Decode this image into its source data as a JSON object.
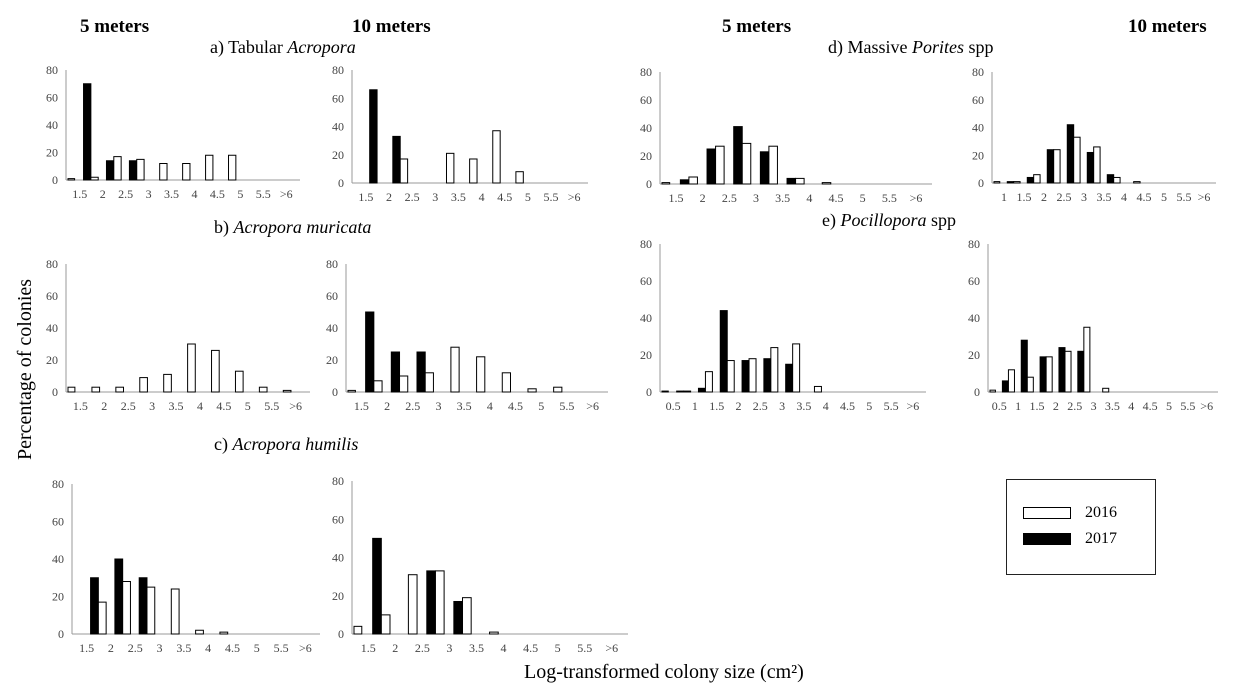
{
  "column_headers": [
    "5 meters",
    "10 meters",
    "5 meters",
    "10 meters"
  ],
  "panel_titles": {
    "a": {
      "prefix": "a) Tabular ",
      "italic": "Acropora",
      "suffix": ""
    },
    "b": {
      "prefix": "b) ",
      "italic": "Acropora muricata",
      "suffix": ""
    },
    "c": {
      "prefix": "c) ",
      "italic": "Acropora humilis",
      "suffix": ""
    },
    "d": {
      "prefix": "d) Massive ",
      "italic": "Porites",
      "suffix": " spp"
    },
    "e": {
      "prefix": "e) ",
      "italic": "Pocillopora",
      "suffix": " spp"
    }
  },
  "y_axis_label": "Percentage of colonies",
  "x_axis_label": "Log-transformed colony size (cm²)",
  "legend": [
    {
      "label": "2016",
      "color": "#ffffff"
    },
    {
      "label": "2017",
      "color": "#000000"
    }
  ],
  "chart_data": [
    {
      "id": "a-5m",
      "type": "bar",
      "panel": "a",
      "depth": "5 meters",
      "ylim": [
        0,
        80
      ],
      "yticks": [
        0,
        20,
        40,
        60,
        80
      ],
      "categories": [
        "1.5",
        "2",
        "2.5",
        "3",
        "3.5",
        "4",
        "4.5",
        "5",
        "5.5",
        ">6"
      ],
      "series": [
        {
          "name": "2016",
          "values": [
            2,
            17,
            15,
            12,
            12,
            18,
            18,
            0,
            0,
            0
          ]
        },
        {
          "name": "2017",
          "values": [
            70,
            14,
            14,
            0,
            0,
            0,
            0,
            0,
            0,
            0
          ]
        }
      ],
      "first_2016": 1
    },
    {
      "id": "a-10m",
      "type": "bar",
      "panel": "a",
      "depth": "10 meters",
      "ylim": [
        0,
        80
      ],
      "yticks": [
        0,
        20,
        40,
        60,
        80
      ],
      "categories": [
        "1.5",
        "2",
        "2.5",
        "3",
        "3.5",
        "4",
        "4.5",
        "5",
        "5.5",
        ">6"
      ],
      "series": [
        {
          "name": "2016",
          "values": [
            0,
            17,
            0,
            21,
            17,
            37,
            8,
            0,
            0,
            0
          ]
        },
        {
          "name": "2017",
          "values": [
            66,
            33,
            0,
            0,
            0,
            0,
            0,
            0,
            0,
            0
          ]
        }
      ],
      "first_2016": 0
    },
    {
      "id": "b-5m",
      "type": "bar",
      "panel": "b",
      "depth": "5 meters",
      "ylim": [
        0,
        80
      ],
      "yticks": [
        0,
        20,
        40,
        60,
        80
      ],
      "categories": [
        "1.5",
        "2",
        "2.5",
        "3",
        "3.5",
        "4",
        "4.5",
        "5",
        "5.5",
        ">6"
      ],
      "series": [
        {
          "name": "2016",
          "values": [
            3,
            3,
            9,
            11,
            30,
            26,
            13,
            3,
            1,
            0
          ]
        },
        {
          "name": "2017",
          "values": [
            0,
            0,
            0,
            0,
            0,
            0,
            0,
            0,
            0,
            0
          ]
        }
      ],
      "first_2016": 3
    },
    {
      "id": "b-10m",
      "type": "bar",
      "panel": "b",
      "depth": "10 meters",
      "ylim": [
        0,
        80
      ],
      "yticks": [
        0,
        20,
        40,
        60,
        80
      ],
      "categories": [
        "1.5",
        "2",
        "2.5",
        "3",
        "3.5",
        "4",
        "4.5",
        "5",
        "5.5",
        ">6"
      ],
      "series": [
        {
          "name": "2016",
          "values": [
            7,
            10,
            12,
            28,
            22,
            12,
            2,
            3,
            0,
            0
          ]
        },
        {
          "name": "2017",
          "values": [
            50,
            25,
            25,
            0,
            0,
            0,
            0,
            0,
            0,
            0
          ]
        }
      ],
      "first_2016": 1
    },
    {
      "id": "c-5m",
      "type": "bar",
      "panel": "c",
      "depth": "5 meters",
      "ylim": [
        0,
        80
      ],
      "yticks": [
        0,
        20,
        40,
        60,
        80
      ],
      "categories": [
        "1.5",
        "2",
        "2.5",
        "3",
        "3.5",
        "4",
        "4.5",
        "5",
        "5.5",
        ">6"
      ],
      "series": [
        {
          "name": "2016",
          "values": [
            17,
            28,
            25,
            24,
            2,
            1,
            0,
            0,
            0,
            0
          ]
        },
        {
          "name": "2017",
          "values": [
            30,
            40,
            30,
            0,
            0,
            0,
            0,
            0,
            0,
            0
          ]
        }
      ],
      "first_2016": 0
    },
    {
      "id": "c-10m",
      "type": "bar",
      "panel": "c",
      "depth": "10 meters",
      "ylim": [
        0,
        80
      ],
      "yticks": [
        0,
        20,
        40,
        60,
        80
      ],
      "categories": [
        "1.5",
        "2",
        "2.5",
        "3",
        "3.5",
        "4",
        "4.5",
        "5",
        "5.5",
        ">6"
      ],
      "series": [
        {
          "name": "2016",
          "values": [
            10,
            31,
            33,
            19,
            1,
            0,
            0,
            0,
            0,
            0
          ]
        },
        {
          "name": "2017",
          "values": [
            50,
            0,
            33,
            17,
            0,
            0,
            0,
            0,
            0,
            0
          ]
        }
      ],
      "first_2016": 4
    },
    {
      "id": "d-5m",
      "type": "bar",
      "panel": "d",
      "depth": "5 meters",
      "ylim": [
        0,
        80
      ],
      "yticks": [
        0,
        20,
        40,
        60,
        80
      ],
      "categories": [
        "1.5",
        "2",
        "2.5",
        "3",
        "3.5",
        "4",
        "4.5",
        "5",
        "5.5",
        ">6"
      ],
      "series": [
        {
          "name": "2016",
          "values": [
            5,
            27,
            29,
            27,
            4,
            1,
            0,
            0,
            0,
            0
          ]
        },
        {
          "name": "2017",
          "values": [
            3,
            25,
            41,
            23,
            4,
            0,
            0,
            0,
            0,
            0
          ]
        }
      ],
      "first_2016": 1
    },
    {
      "id": "d-10m",
      "type": "bar",
      "panel": "d",
      "depth": "10 meters",
      "ylim": [
        0,
        80
      ],
      "yticks": [
        0,
        20,
        40,
        60,
        80
      ],
      "categories": [
        "1",
        "1.5",
        "2",
        "2.5",
        "3",
        "3.5",
        "4",
        "4.5",
        "5",
        "5.5",
        ">6"
      ],
      "series": [
        {
          "name": "2016",
          "values": [
            1,
            6,
            24,
            33,
            26,
            4,
            1,
            0,
            0,
            0,
            0
          ]
        },
        {
          "name": "2017",
          "values": [
            1,
            4,
            24,
            42,
            22,
            6,
            0,
            0,
            0,
            0,
            0
          ]
        }
      ],
      "first_2016": 1
    },
    {
      "id": "e-5m",
      "type": "bar",
      "panel": "e",
      "depth": "5 meters",
      "ylim": [
        0,
        80
      ],
      "yticks": [
        0,
        20,
        40,
        60,
        80
      ],
      "categories": [
        "0.5",
        "1",
        "1.5",
        "2",
        "2.5",
        "3",
        "3.5",
        "4",
        "4.5",
        "5",
        "5.5",
        ">6"
      ],
      "series": [
        {
          "name": "2016",
          "values": [
            0.5,
            11,
            17,
            18,
            24,
            26,
            3,
            0,
            0,
            0,
            0,
            0
          ]
        },
        {
          "name": "2017",
          "values": [
            0.5,
            2,
            44,
            17,
            18,
            15,
            0,
            0,
            0,
            0,
            0,
            0
          ]
        }
      ],
      "first_2016": 0.5
    },
    {
      "id": "e-10m",
      "type": "bar",
      "panel": "e",
      "depth": "10 meters",
      "ylim": [
        0,
        80
      ],
      "yticks": [
        0,
        20,
        40,
        60,
        80
      ],
      "categories": [
        "0.5",
        "1",
        "1.5",
        "2",
        "2.5",
        "3",
        "3.5",
        "4",
        "4.5",
        "5",
        "5.5",
        ">6"
      ],
      "series": [
        {
          "name": "2016",
          "values": [
            12,
            8,
            19,
            22,
            35,
            2,
            0,
            0,
            0,
            0,
            0,
            0
          ]
        },
        {
          "name": "2017",
          "values": [
            6,
            28,
            19,
            24,
            22,
            0,
            0,
            0,
            0,
            0,
            0,
            0
          ]
        }
      ],
      "first_2016": 1
    }
  ]
}
